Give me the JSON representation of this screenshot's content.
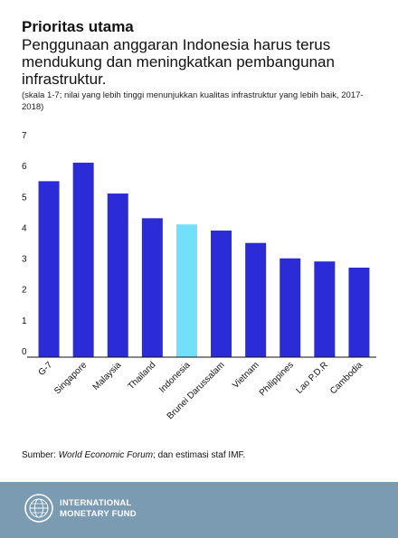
{
  "header": {
    "title": "Prioritas utama",
    "subtitle": "Penggunaan anggaran Indonesia harus terus mendukung dan meningkatkan pembangunan infrastruktur.",
    "note": "(skala 1-7; nilai yang lebih tinggi menunjukkan kualitas infrastruktur yang lebih baik, 2017-2018)"
  },
  "source": {
    "prefix": "Sumber: ",
    "italic": "World Economic Forum",
    "suffix": "; dan estimasi staf IMF."
  },
  "footer": {
    "line1": "INTERNATIONAL",
    "line2": "MONETARY FUND",
    "background": "#7b9bb3"
  },
  "chart_data": {
    "type": "bar",
    "categories": [
      "G-7",
      "Singapore",
      "Malaysia",
      "Thailand",
      "Indonesia",
      "Brunei Darussalam",
      "Vietnam",
      "Philippines",
      "Lao P.D.R",
      "Cambodia"
    ],
    "values": [
      5.7,
      6.3,
      5.3,
      4.5,
      4.3,
      4.1,
      3.7,
      3.2,
      3.1,
      2.9
    ],
    "ylim": [
      0,
      7
    ],
    "yticks": [
      0,
      1,
      2,
      3,
      4,
      5,
      6,
      7
    ],
    "highlight": "Indonesia",
    "colors": {
      "default": "#2b2bd8",
      "highlight": "#72e0fa"
    },
    "grid": false
  }
}
